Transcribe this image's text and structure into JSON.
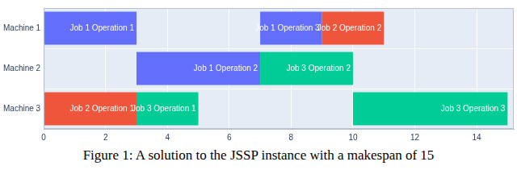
{
  "chart_data": {
    "type": "bar",
    "orientation": "horizontal",
    "caption": "Figure 1: A solution to the JSSP instance with a makespan of 15",
    "categories": [
      "Machine 1",
      "Machine 2",
      "Machine 3"
    ],
    "bars": [
      {
        "category": "Machine 1",
        "start": 0,
        "end": 3,
        "label": "Job 1 Operation 1",
        "color": "#636efa"
      },
      {
        "category": "Machine 1",
        "start": 7,
        "end": 9,
        "label": "Job 1 Operation 3",
        "color": "#636efa"
      },
      {
        "category": "Machine 1",
        "start": 9,
        "end": 11,
        "label": "Job 2 Operation 2",
        "color": "#ef553b"
      },
      {
        "category": "Machine 2",
        "start": 3,
        "end": 7,
        "label": "Job 1 Operation 2",
        "color": "#636efa"
      },
      {
        "category": "Machine 2",
        "start": 7,
        "end": 10,
        "label": "Job 3 Operation 2",
        "color": "#00cc96"
      },
      {
        "category": "Machine 3",
        "start": 0,
        "end": 3,
        "label": "Job 2 Operation 1",
        "color": "#ef553b"
      },
      {
        "category": "Machine 3",
        "start": 3,
        "end": 5,
        "label": "Job 3 Operation 1",
        "color": "#00cc96"
      },
      {
        "category": "Machine 3",
        "start": 10,
        "end": 15,
        "label": "Job 3 Operation 3",
        "color": "#00cc96"
      }
    ],
    "xlim": [
      0,
      15.2
    ],
    "xticks": [
      0,
      2,
      4,
      6,
      8,
      10,
      12,
      14
    ],
    "grid": true
  }
}
